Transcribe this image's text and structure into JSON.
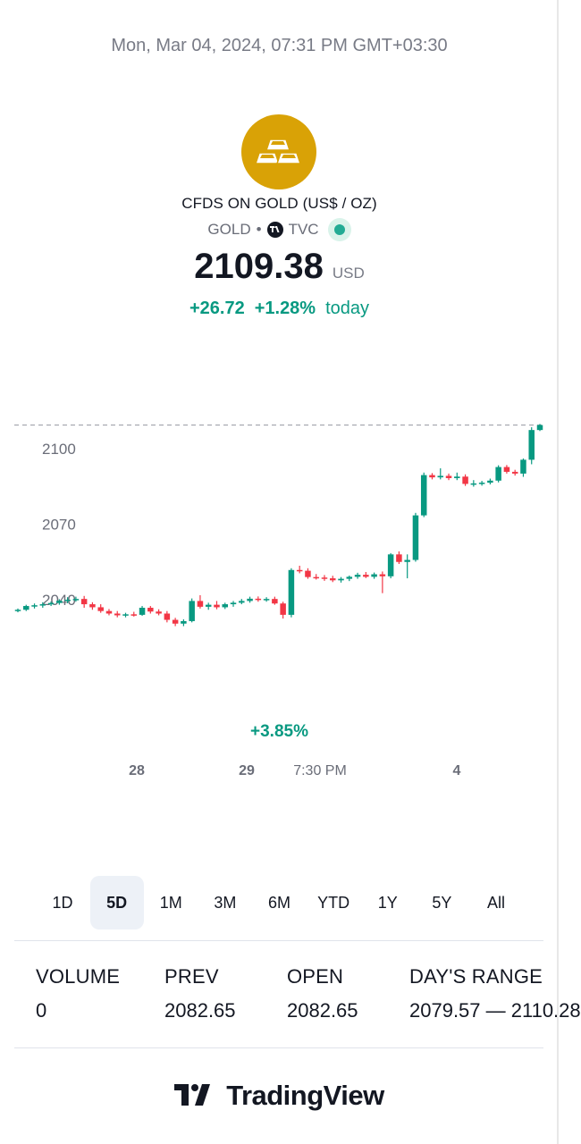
{
  "header": {
    "timestamp": "Mon, Mar 04, 2024, 07:31 PM GMT+03:30"
  },
  "symbol": {
    "title": "CFDS ON GOLD (US$ / OZ)",
    "ticker": "GOLD",
    "separator": "•",
    "exchange": "TVC",
    "logo_icon": "gold-bars-icon",
    "brand_color": "#d9a206"
  },
  "quote": {
    "price": "2109.38",
    "currency": "USD",
    "change": "+26.72",
    "change_pct": "+1.28%",
    "period": "today",
    "positive_color": "#089981",
    "negative_color": "#f23645"
  },
  "chart_data": {
    "type": "candlestick",
    "y_ticks": [
      "2100",
      "2070",
      "2040"
    ],
    "y_tick_values": [
      2100,
      2070,
      2040
    ],
    "last_price": 2109.38,
    "period_change": "+3.85%",
    "x_labels": [
      {
        "text": "28",
        "bold": true
      },
      {
        "text": "29",
        "bold": true
      },
      {
        "text": "7:30 PM",
        "bold": false
      },
      {
        "text": "4",
        "bold": true
      }
    ],
    "candles": [
      [
        2035.5,
        2036.5,
        2035,
        2036
      ],
      [
        2036,
        2038,
        2035.5,
        2037.5
      ],
      [
        2037.5,
        2038.5,
        2036.5,
        2037.8
      ],
      [
        2037.8,
        2039,
        2036.8,
        2038.2
      ],
      [
        2038.2,
        2039.3,
        2037.5,
        2038.7
      ],
      [
        2038.7,
        2040.2,
        2038,
        2039.6
      ],
      [
        2039.6,
        2041,
        2038.6,
        2040
      ],
      [
        2040,
        2041.2,
        2039.2,
        2040.3
      ],
      [
        2040.3,
        2041.5,
        2036.8,
        2038.2
      ],
      [
        2038.2,
        2039,
        2036,
        2037
      ],
      [
        2037,
        2038.2,
        2034.8,
        2035.5
      ],
      [
        2035.5,
        2036.3,
        2033.8,
        2034.5
      ],
      [
        2034.5,
        2035.5,
        2033,
        2033.8
      ],
      [
        2033.8,
        2034.8,
        2033,
        2034.2
      ],
      [
        2034.2,
        2035.2,
        2033.3,
        2034
      ],
      [
        2034,
        2037.5,
        2033.6,
        2036.8
      ],
      [
        2036.8,
        2037.5,
        2034.5,
        2035.3
      ],
      [
        2035.3,
        2036.2,
        2033.8,
        2034.5
      ],
      [
        2034.5,
        2035.5,
        2031,
        2032
      ],
      [
        2032,
        2032.8,
        2029.5,
        2030.5
      ],
      [
        2030.5,
        2032.2,
        2029.5,
        2031.5
      ],
      [
        2031.5,
        2040.5,
        2031,
        2039.5
      ],
      [
        2039.5,
        2041.8,
        2036.5,
        2037.2
      ],
      [
        2037.2,
        2038.8,
        2036,
        2038
      ],
      [
        2038,
        2039.5,
        2036.2,
        2037
      ],
      [
        2037,
        2038.8,
        2036.3,
        2038.2
      ],
      [
        2038.2,
        2039.5,
        2037.2,
        2038.8
      ],
      [
        2038.8,
        2040.3,
        2038.2,
        2039.5
      ],
      [
        2039.5,
        2041.2,
        2038.8,
        2040.4
      ],
      [
        2040.4,
        2041.3,
        2039.2,
        2040
      ],
      [
        2040,
        2041,
        2039.2,
        2040.3
      ],
      [
        2040.3,
        2041.2,
        2038,
        2038.5
      ],
      [
        2038.5,
        2039.2,
        2032.5,
        2034
      ],
      [
        2034,
        2052.5,
        2033,
        2051.8
      ],
      [
        2051.8,
        2053.5,
        2050.5,
        2051.5
      ],
      [
        2051.5,
        2052.5,
        2048.3,
        2049
      ],
      [
        2049,
        2050.2,
        2048,
        2048.8
      ],
      [
        2048.8,
        2049.8,
        2047.5,
        2048.5
      ],
      [
        2048.5,
        2049.5,
        2047,
        2047.7
      ],
      [
        2047.7,
        2049,
        2046.8,
        2048.3
      ],
      [
        2048.3,
        2049.6,
        2047.4,
        2049.1
      ],
      [
        2049.1,
        2050.7,
        2048.3,
        2049.9
      ],
      [
        2049.9,
        2051,
        2048.6,
        2049.1
      ],
      [
        2049.1,
        2050.8,
        2048.3,
        2050.1
      ],
      [
        2050.1,
        2051.2,
        2042.6,
        2049.3
      ],
      [
        2049.3,
        2058.5,
        2048.5,
        2058
      ],
      [
        2058,
        2059.2,
        2054.2,
        2055
      ],
      [
        2055,
        2058,
        2048.5,
        2055.8
      ],
      [
        2055.8,
        2074.5,
        2055.1,
        2073.5
      ],
      [
        2073.5,
        2090.5,
        2072.8,
        2089.5
      ],
      [
        2089.5,
        2090.3,
        2087.8,
        2088.6
      ],
      [
        2088.6,
        2092.2,
        2087.8,
        2089.2
      ],
      [
        2089.2,
        2090.1,
        2087.5,
        2088.3
      ],
      [
        2088.3,
        2090.5,
        2087.5,
        2088.9
      ],
      [
        2088.9,
        2089.8,
        2085.2,
        2086
      ],
      [
        2086,
        2087.5,
        2084.9,
        2086.2
      ],
      [
        2086.2,
        2087.2,
        2085.3,
        2086.5
      ],
      [
        2086.5,
        2088.1,
        2085.8,
        2087.3
      ],
      [
        2087.3,
        2093.4,
        2086.6,
        2092.7
      ],
      [
        2092.7,
        2093.5,
        2090.1,
        2090.8
      ],
      [
        2090.8,
        2091.6,
        2089.3,
        2090.1
      ],
      [
        2090.1,
        2096.1,
        2088.8,
        2095.6
      ],
      [
        2095.6,
        2108.5,
        2093.8,
        2107.4
      ],
      [
        2107.4,
        2109.8,
        2107,
        2109.38
      ]
    ]
  },
  "ranges": {
    "items": [
      "1D",
      "5D",
      "1M",
      "3M",
      "6M",
      "YTD",
      "1Y",
      "5Y",
      "All"
    ],
    "active": "5D"
  },
  "stats": {
    "volume": {
      "label": "VOLUME",
      "value": "0"
    },
    "prev": {
      "label": "PREV",
      "value": "2082.65"
    },
    "open": {
      "label": "OPEN",
      "value": "2082.65"
    },
    "days_range": {
      "label": "DAY'S RANGE",
      "value": "2079.57 — 2110.28"
    }
  },
  "footer": {
    "brand": "TradingView",
    "brand_icon": "tradingview-logo-icon"
  }
}
